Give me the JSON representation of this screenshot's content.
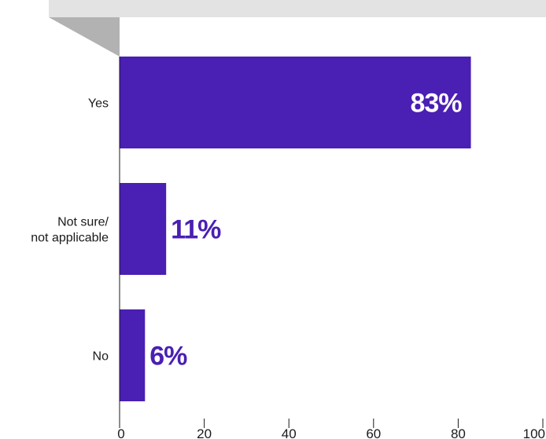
{
  "chart_data": {
    "type": "bar",
    "orientation": "horizontal",
    "categories": [
      "Yes",
      "Not sure/\nnot applicable",
      "No"
    ],
    "values": [
      83,
      11,
      6
    ],
    "data_labels": [
      "83%",
      "11%",
      "6%"
    ],
    "xlim": [
      0,
      100
    ],
    "x_ticks": [
      0,
      20,
      40,
      60,
      80,
      100
    ],
    "title": "",
    "xlabel": "",
    "ylabel": "",
    "grid": false,
    "colors": {
      "bar": "#4a1fb3",
      "label_inside": "#ffffff",
      "label_outside": "#4a1fb3",
      "banner": "#e3e3e3",
      "banner_fold": "#b2b2b2",
      "axis": "#1a1a1a"
    }
  }
}
